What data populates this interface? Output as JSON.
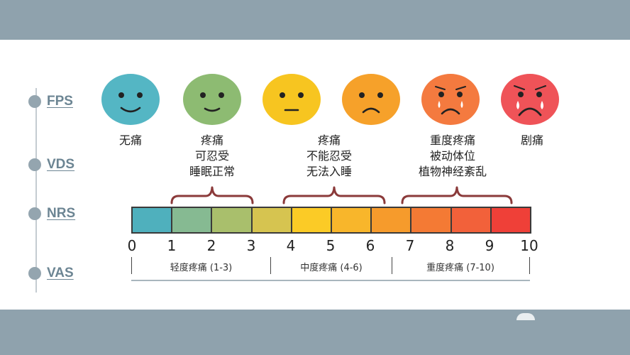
{
  "scales": [
    {
      "key": "fps",
      "label": "FPS"
    },
    {
      "key": "vds",
      "label": "VDS"
    },
    {
      "key": "nrs",
      "label": "NRS"
    },
    {
      "key": "vas",
      "label": "VAS"
    }
  ],
  "faces": [
    {
      "name": "face-no-pain",
      "color": "#54b6c4",
      "mouth": "smile",
      "tears": false
    },
    {
      "name": "face-mild-pain",
      "color": "#8dbb72",
      "mouth": "smile-small",
      "tears": false
    },
    {
      "name": "face-moderate-pain-1",
      "color": "#f7c520",
      "mouth": "flat",
      "tears": false
    },
    {
      "name": "face-moderate-pain-2",
      "color": "#f6a12a",
      "mouth": "frown",
      "tears": false
    },
    {
      "name": "face-severe-pain",
      "color": "#f47a3f",
      "mouth": "frown",
      "tears": true
    },
    {
      "name": "face-worst-pain",
      "color": "#ef5358",
      "mouth": "frown-deep",
      "tears": true
    }
  ],
  "descriptions": {
    "none": "无痛",
    "mild": [
      "疼痛",
      "可忍受",
      "睡眠正常"
    ],
    "moderate": [
      "疼痛",
      "不能忍受",
      "无法入睡"
    ],
    "severe": [
      "重度疼痛",
      "被动体位",
      "植物神经紊乱"
    ],
    "worst": "剧痛"
  },
  "bar": {
    "segment_colors": [
      "#4fb0bd",
      "#86ba92",
      "#a9bf6c",
      "#d6c450",
      "#fbcb26",
      "#f8b62b",
      "#f69b2c",
      "#f47a34",
      "#f2613a",
      "#ef4038"
    ],
    "bracket_color": "#8b3a3a"
  },
  "ticks": [
    "0",
    "1",
    "2",
    "3",
    "4",
    "5",
    "6",
    "7",
    "8",
    "9",
    "10"
  ],
  "categories": {
    "mild": "轻度疼痛 (1-3)",
    "moderate": "中度疼痛 (4-6)",
    "severe": "重度疼痛 (7-10)"
  }
}
